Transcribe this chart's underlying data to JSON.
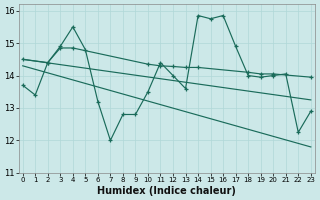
{
  "xlabel": "Humidex (Indice chaleur)",
  "bg_color": "#cce8e8",
  "line_color": "#1a6b5a",
  "xlim": [
    -0.3,
    23.3
  ],
  "ylim": [
    11,
    16.2
  ],
  "xticks": [
    0,
    1,
    2,
    3,
    4,
    5,
    6,
    7,
    8,
    9,
    10,
    11,
    12,
    13,
    14,
    15,
    16,
    17,
    18,
    19,
    20,
    21,
    22,
    23
  ],
  "yticks": [
    11,
    12,
    13,
    14,
    15,
    16
  ],
  "line1_x": [
    0,
    1,
    2,
    3,
    4,
    5,
    6,
    7,
    8,
    9,
    10,
    11,
    12,
    13,
    14,
    15,
    16,
    17,
    18,
    19,
    20,
    21,
    22,
    23
  ],
  "line1_y": [
    13.7,
    13.4,
    14.4,
    14.9,
    15.5,
    14.8,
    13.2,
    12.0,
    12.8,
    12.8,
    13.5,
    14.4,
    14.0,
    13.6,
    15.85,
    15.75,
    15.85,
    14.9,
    14.0,
    13.95,
    14.0,
    14.05,
    12.25,
    12.9
  ],
  "line2_x": [
    0,
    2,
    3,
    4,
    10,
    11,
    12,
    13,
    14,
    18,
    19,
    20,
    23
  ],
  "line2_y": [
    14.5,
    14.4,
    14.85,
    14.85,
    14.35,
    14.3,
    14.28,
    14.25,
    14.25,
    14.1,
    14.05,
    14.05,
    13.95
  ],
  "line3_x": [
    0,
    23
  ],
  "line3_y": [
    14.5,
    13.25
  ],
  "line4_x": [
    0,
    23
  ],
  "line4_y": [
    14.3,
    11.8
  ]
}
